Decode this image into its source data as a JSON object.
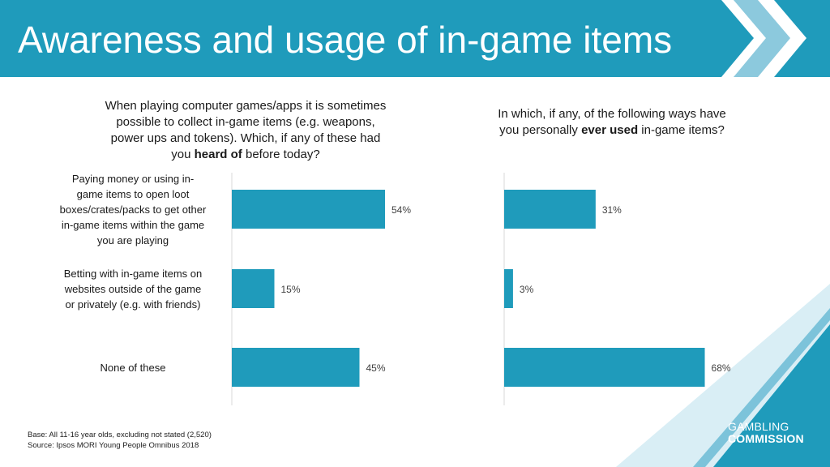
{
  "header": {
    "title": "Awareness and usage of in-game items"
  },
  "questions": {
    "left_html": "When playing computer games/apps it is sometimes possible to collect in-game items (e.g. weapons, power ups and tokens). Which, if any of these had you <b>heard of</b> before today?",
    "right_html": "In which, if any, of the following ways have you personally <b>ever used</b> in-game items?"
  },
  "footnote": {
    "base": "Base: All 11-16 year olds, excluding not stated (2,520)",
    "source": "Source: Ipsos MORI Young People Omnibus 2018"
  },
  "logo": {
    "line1": "GAMBLING",
    "line2": "COMMISSION"
  },
  "colors": {
    "accent": "#1F9BBB",
    "header": "#1F9BBB"
  },
  "chart_data": [
    {
      "type": "bar",
      "orientation": "horizontal",
      "categories": [
        "Paying money or using in-game items to open loot boxes/crates/packs to get other in-game items within the game you are playing",
        "Betting with in-game items on websites outside of the game or privately (e.g. with friends)",
        "None of these"
      ],
      "category_lines": [
        [
          "Paying money or using in-",
          "game items to open loot",
          "boxes/crates/packs to get other",
          "in-game items within the game",
          "you are playing"
        ],
        [
          "Betting with in-game items on",
          "websites outside of the game",
          "or privately (e.g. with friends)"
        ],
        [
          "None of these"
        ]
      ],
      "values": [
        54,
        15,
        45
      ],
      "value_labels": [
        "54%",
        "15%",
        "45%"
      ],
      "xlim": [
        0,
        100
      ]
    },
    {
      "type": "bar",
      "orientation": "horizontal",
      "categories": [
        "Paying money or using in-game items to open loot boxes/crates/packs to get other in-game items within the game you are playing",
        "Betting with in-game items on websites outside of the game or privately (e.g. with friends)",
        "None of these"
      ],
      "values": [
        31,
        3,
        68
      ],
      "value_labels": [
        "31%",
        "3%",
        "68%"
      ],
      "xlim": [
        0,
        100
      ]
    }
  ]
}
